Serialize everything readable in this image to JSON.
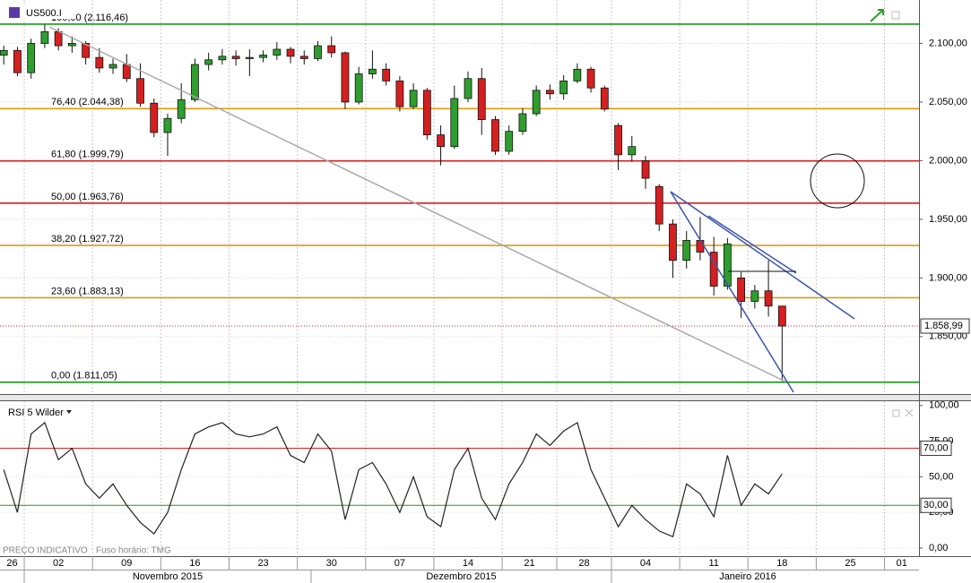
{
  "chart_data": [
    {
      "type": "candlestick",
      "symbol": "US500.I",
      "categories": [
        "26",
        null,
        null,
        null,
        null,
        "02",
        null,
        null,
        null,
        null,
        "09",
        null,
        null,
        null,
        null,
        "16",
        null,
        null,
        null,
        null,
        "23",
        null,
        null,
        null,
        null,
        "30",
        null,
        null,
        null,
        null,
        "07",
        null,
        null,
        null,
        null,
        "14",
        null,
        null,
        null,
        null,
        "21",
        null,
        null,
        null,
        "28",
        null,
        null,
        null,
        "04",
        null,
        null,
        null,
        null,
        "11",
        null,
        null,
        null,
        null,
        "18",
        null,
        null,
        null,
        null,
        "25",
        null,
        null,
        null,
        null,
        "01",
        null,
        null
      ],
      "months": [
        "Novembro 2015",
        "Dezembro 2015",
        "Janeiro 2016"
      ],
      "open": [
        null,
        null,
        null,
        2090,
        2094,
        2075,
        2100,
        2110,
        2098,
        2100,
        2088,
        2079,
        2082,
        2070,
        2049,
        2024,
        2036,
        2052,
        2082,
        2086,
        2089,
        2087,
        2088,
        2090,
        2095,
        2089,
        2087,
        2098,
        2092,
        2050,
        2074,
        2078,
        2068,
        2046,
        2060,
        2022,
        2012,
        2053,
        2070,
        2035,
        2008,
        2025,
        2040,
        2060,
        2057,
        2068,
        2078,
        2062,
        2030,
        2005,
        2000,
        1978,
        1946,
        1915,
        1932,
        1922,
        1893,
        1900,
        1880,
        1889,
        1876,
        null,
        null,
        null,
        null,
        null,
        null,
        null,
        null,
        null,
        null
      ],
      "high": [
        null,
        null,
        null,
        2098,
        2097,
        2104,
        2116,
        2113,
        2106,
        2102,
        2096,
        2087,
        2091,
        2083,
        2053,
        2040,
        2066,
        2087,
        2092,
        2095,
        2094,
        2095,
        2094,
        2101,
        2097,
        2094,
        2102,
        2106,
        2093,
        2080,
        2094,
        2083,
        2072,
        2066,
        2062,
        2030,
        2064,
        2076,
        2079,
        2038,
        2030,
        2045,
        2064,
        2065,
        2073,
        2083,
        2080,
        2064,
        2032,
        2021,
        2004,
        1980,
        1950,
        1940,
        1952,
        1935,
        1934,
        1905,
        1894,
        1915,
        1876,
        null,
        null,
        null,
        null,
        null,
        null,
        null,
        null,
        null,
        null
      ],
      "low": [
        null,
        null,
        null,
        2082,
        2072,
        2070,
        2096,
        2094,
        2092,
        2082,
        2075,
        2074,
        2067,
        2046,
        2020,
        2004,
        2032,
        2050,
        2077,
        2082,
        2081,
        2072,
        2084,
        2086,
        2083,
        2082,
        2085,
        2088,
        2044,
        2048,
        2070,
        2064,
        2042,
        2044,
        2018,
        1996,
        2010,
        2050,
        2022,
        2005,
        2005,
        2022,
        2038,
        2052,
        2052,
        2066,
        2058,
        2042,
        1992,
        1999,
        1976,
        1940,
        1900,
        1908,
        1915,
        1885,
        1890,
        1866,
        1874,
        1867,
        1812,
        null,
        null,
        null,
        null,
        null,
        null,
        null,
        null,
        null,
        null
      ],
      "close": [
        null,
        null,
        null,
        2094,
        2075,
        2100,
        2110,
        2098,
        2100,
        2088,
        2079,
        2082,
        2070,
        2049,
        2024,
        2036,
        2052,
        2082,
        2086,
        2089,
        2087,
        2088,
        2090,
        2095,
        2089,
        2087,
        2098,
        2092,
        2050,
        2074,
        2078,
        2068,
        2046,
        2060,
        2022,
        2012,
        2053,
        2070,
        2035,
        2008,
        2025,
        2040,
        2060,
        2057,
        2068,
        2078,
        2062,
        2044,
        2005,
        2012,
        1985,
        1946,
        1915,
        1932,
        1922,
        1893,
        1929,
        1880,
        1889,
        1876,
        1858.99,
        null,
        null,
        null,
        null,
        null,
        null,
        null,
        null,
        null,
        null
      ],
      "up_color": "#2e9e2e",
      "down_color": "#d42020",
      "ylim": [
        1801,
        2137
      ],
      "yticks": [
        {
          "value": 1850,
          "label": "1.850,00"
        },
        {
          "value": 1900,
          "label": "1.900,00"
        },
        {
          "value": 1950,
          "label": "1.950,00"
        },
        {
          "value": 2000,
          "label": "2.000,00"
        },
        {
          "value": 2050,
          "label": "2.050,00"
        },
        {
          "value": 2100,
          "label": "2.100,00"
        }
      ],
      "grid": true,
      "fib_levels": [
        {
          "value": 2116.46,
          "label": "100,00 (2.116,46)",
          "color": "#1a9a1a"
        },
        {
          "value": 2044.38,
          "label": "76,40 (2.044,38)",
          "color": "#e09a10"
        },
        {
          "value": 1999.79,
          "label": "61,80 (1.999,79)",
          "color": "#d42020"
        },
        {
          "value": 1963.76,
          "label": "50,00 (1.963,76)",
          "color": "#d42020"
        },
        {
          "value": 1927.72,
          "label": "38,20 (1.927,72)",
          "color": "#e09a10"
        },
        {
          "value": 1883.13,
          "label": "23,60 (1.883,13)",
          "color": "#e09a10"
        },
        {
          "value": 1811.05,
          "label": "0,00 (1.811,05)",
          "color": "#1a9a1a"
        }
      ],
      "last_price": {
        "value": 1858.99,
        "label": "1.858,99"
      },
      "note": "PREÇO INDICATIVO",
      "timezone": "Fuso horário: TMG"
    },
    {
      "type": "line",
      "title": "RSI 5 Wilder",
      "color": "#222",
      "values": [
        null,
        null,
        null,
        55,
        25,
        80,
        88,
        62,
        70,
        45,
        35,
        45,
        30,
        18,
        10,
        25,
        55,
        80,
        85,
        88,
        80,
        78,
        80,
        85,
        65,
        60,
        80,
        68,
        20,
        55,
        60,
        45,
        25,
        50,
        22,
        15,
        55,
        70,
        35,
        20,
        45,
        60,
        80,
        72,
        82,
        88,
        55,
        35,
        15,
        30,
        20,
        12,
        8,
        45,
        38,
        22,
        65,
        30,
        45,
        38,
        52,
        null,
        null,
        null,
        null,
        null,
        null,
        null,
        null,
        null,
        null
      ],
      "ylim": [
        -5,
        103
      ],
      "yticks": [
        {
          "value": 0,
          "label": "0,00"
        },
        {
          "value": 25,
          "label": "25,00"
        },
        {
          "value": 50,
          "label": "50,00"
        },
        {
          "value": 75,
          "label": "75,00"
        },
        {
          "value": 100,
          "label": "100,00"
        }
      ],
      "levels": [
        {
          "value": 70,
          "label": "70,00",
          "color": "#d42020"
        },
        {
          "value": 30,
          "label": "30,00",
          "color": "#1a9a1a"
        }
      ]
    }
  ]
}
